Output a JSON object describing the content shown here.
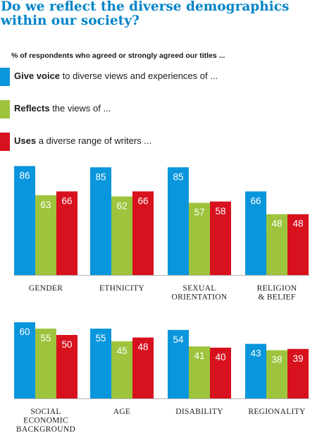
{
  "title": "Do we reflect the diverse demographics within our society?",
  "subtitle": "% of respondents who agreed or strongly agreed our titles ...",
  "colors": {
    "blue": "#0a96dc",
    "green": "#9dc43c",
    "red": "#d7111d",
    "baseline": "#b5b5b5"
  },
  "legend": [
    {
      "bold": "Give voice",
      "rest": " to diverse views and experiences of ...",
      "color": "#0a96dc"
    },
    {
      "bold": "Reflects",
      "rest": " the views of ...",
      "color": "#9dc43c"
    },
    {
      "bold": "Uses",
      "rest": " a diverse range of writers ...",
      "color": "#d7111d"
    }
  ],
  "chart_data": {
    "type": "bar",
    "ylim": [
      0,
      100
    ],
    "series_colors": [
      "#0a96dc",
      "#9dc43c",
      "#d7111d"
    ],
    "categories": [
      {
        "label": [
          "GENDER"
        ],
        "values": [
          86,
          63,
          66
        ]
      },
      {
        "label": [
          "ETHNICITY"
        ],
        "values": [
          85,
          62,
          66
        ]
      },
      {
        "label": [
          "SEXUAL",
          "ORIENTATION"
        ],
        "values": [
          85,
          57,
          58
        ]
      },
      {
        "label": [
          "RELIGION",
          "& BELIEF"
        ],
        "values": [
          66,
          48,
          48
        ]
      },
      {
        "label": [
          "SOCIAL",
          "ECONOMIC",
          "BACKGROUND"
        ],
        "values": [
          60,
          55,
          50
        ]
      },
      {
        "label": [
          "AGE"
        ],
        "values": [
          55,
          45,
          48
        ]
      },
      {
        "label": [
          "DISABILITY"
        ],
        "values": [
          54,
          41,
          40
        ]
      },
      {
        "label": [
          "REGIONALITY"
        ],
        "values": [
          43,
          38,
          39
        ]
      }
    ]
  }
}
